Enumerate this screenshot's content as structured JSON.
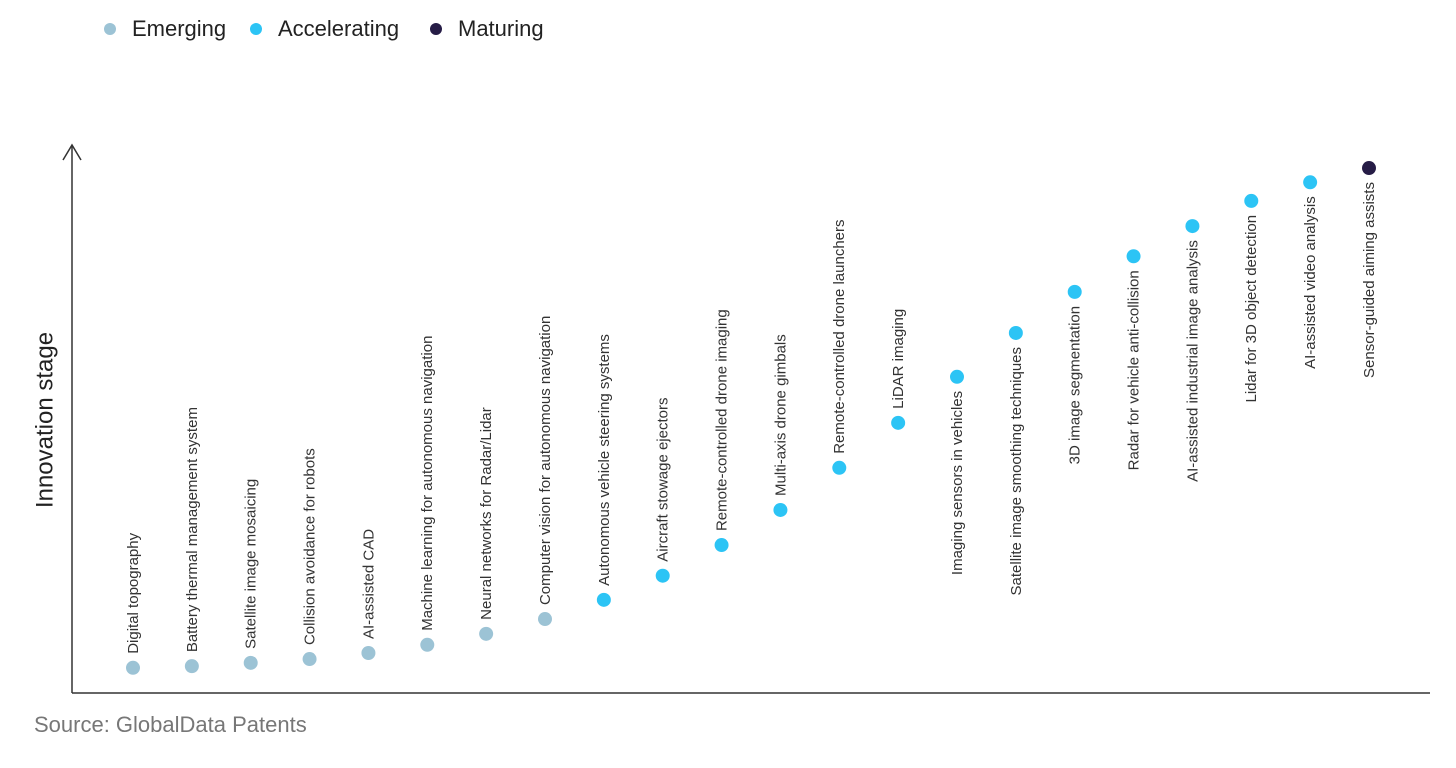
{
  "chart_data": {
    "type": "scatter",
    "y_label": "Innovation stage",
    "source": "Source: GlobalData Patents",
    "ylim": [
      0,
      100
    ],
    "categories": [
      "Digital topography",
      "Battery thermal management system",
      "Satellite image mosaicing",
      "Collision avoidance for robots",
      "AI-assisted CAD",
      "Machine learning for autonomous navigation",
      "Neural networks for Radar/Lidar",
      "Computer vision for autonomous navigation",
      "Autonomous vehicle steering systems",
      "Aircraft stowage ejectors",
      "Remote-controlled drone imaging",
      "Multi-axis drone gimbals",
      "Remote-controlled drone launchers",
      "LiDAR imaging",
      "Imaging sensors in vehicles",
      "Satellite image smoothing techniques",
      "3D image segmentation",
      "Radar for vehicle anti-collision",
      "AI-assisted industrial image analysis",
      "Lidar for 3D object detection",
      "AI-assisted video analysis",
      "Sensor-guided aiming assists"
    ],
    "series": [
      {
        "name": "Emerging",
        "color": "#9cc3d5",
        "values": [
          4.6,
          4.9,
          5.5,
          6.2,
          7.3,
          8.8,
          10.8,
          13.5,
          null,
          null,
          null,
          null,
          null,
          null,
          null,
          null,
          null,
          null,
          null,
          null,
          null,
          null
        ]
      },
      {
        "name": "Accelerating",
        "color": "#2cc4f5",
        "values": [
          null,
          null,
          null,
          null,
          null,
          null,
          null,
          null,
          17.0,
          21.4,
          27.0,
          33.4,
          41.1,
          49.3,
          57.7,
          65.7,
          73.2,
          79.7,
          85.2,
          89.8,
          93.2,
          null
        ]
      },
      {
        "name": "Maturing",
        "color": "#261c46",
        "values": [
          null,
          null,
          null,
          null,
          null,
          null,
          null,
          null,
          null,
          null,
          null,
          null,
          null,
          null,
          null,
          null,
          null,
          null,
          null,
          null,
          null,
          95.8
        ]
      }
    ]
  }
}
